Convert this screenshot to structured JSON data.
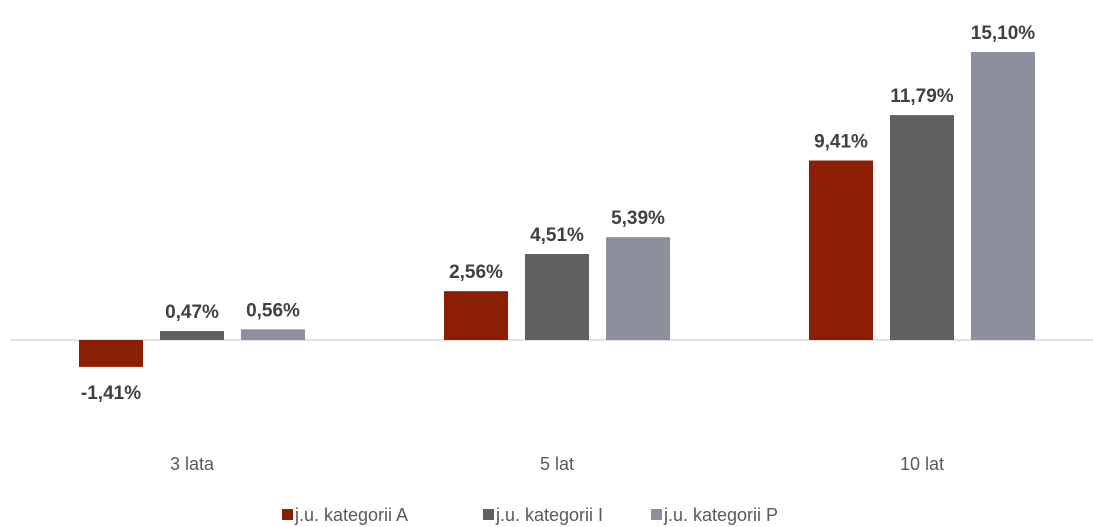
{
  "chart_data": {
    "type": "bar",
    "categories": [
      "3 lata",
      "5 lat",
      "10 lat"
    ],
    "series": [
      {
        "name": "j.u. kategorii A",
        "color": "#8b1e05",
        "values": [
          -1.41,
          2.56,
          9.41
        ],
        "value_labels": [
          "-1,41%",
          "2,56%",
          "9,41%"
        ]
      },
      {
        "name": "j.u. kategorii I",
        "color": "#5f6062",
        "values": [
          0.47,
          4.51,
          11.79
        ],
        "value_labels": [
          "0,47%",
          "4,51%",
          "11,79%"
        ]
      },
      {
        "name": "j.u. kategorii P",
        "color": "#8c909c",
        "values": [
          0.56,
          5.39,
          15.1
        ],
        "value_labels": [
          "0,56%",
          "5,39%",
          "15,10%"
        ]
      }
    ],
    "legend": "bottom"
  }
}
